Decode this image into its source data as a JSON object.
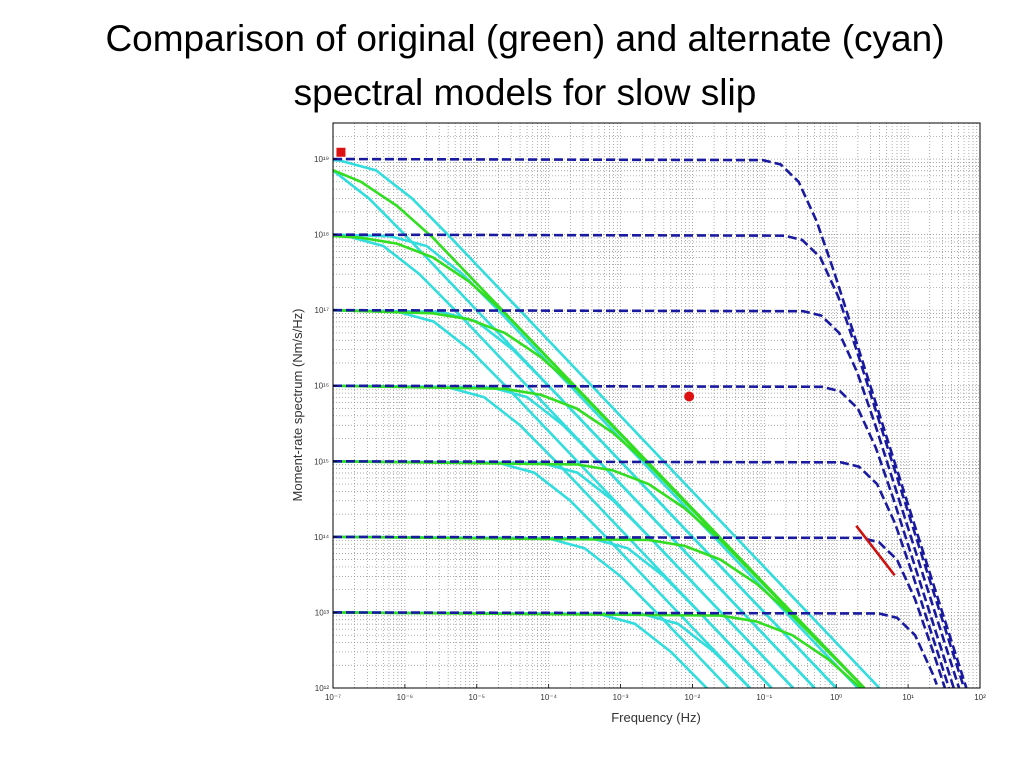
{
  "chart_data": {
    "type": "line",
    "title": "Comparison of original (green) and alternate (cyan) spectral models for slow slip",
    "x_label": "Frequency (Hz)",
    "y_label": "Moment-rate spectrum (Nm/s/Hz)",
    "xlog": true,
    "ylog": true,
    "grid": true,
    "minor_grid": true,
    "xlim": [
      1e-07,
      100
    ],
    "ylim": [
      1000000000000.0,
      3e+19
    ],
    "xticks": [
      {
        "value": 1e-07,
        "label": "10⁻⁷"
      },
      {
        "value": 1e-06,
        "label": "10⁻⁶"
      },
      {
        "value": 1e-05,
        "label": "10⁻⁵"
      },
      {
        "value": 0.0001,
        "label": "10⁻⁴"
      },
      {
        "value": 0.001,
        "label": "10⁻³"
      },
      {
        "value": 0.01,
        "label": "10⁻²"
      },
      {
        "value": 0.1,
        "label": "10⁻¹"
      },
      {
        "value": 1,
        "label": "10⁰"
      },
      {
        "value": 10,
        "label": "10¹"
      },
      {
        "value": 100,
        "label": "10²"
      }
    ],
    "yticks": [
      {
        "value": 1000000000000.0,
        "label": "10¹²"
      },
      {
        "value": 10000000000000.0,
        "label": "10¹³"
      },
      {
        "value": 100000000000000.0,
        "label": "10¹⁴"
      },
      {
        "value": 1000000000000000.0,
        "label": "10¹⁵"
      },
      {
        "value": 1e+16,
        "label": "10¹⁶"
      },
      {
        "value": 1e+17,
        "label": "10¹⁷"
      },
      {
        "value": 1e+18,
        "label": "10¹⁸"
      },
      {
        "value": 1e+19,
        "label": "10¹⁹"
      }
    ],
    "series": [
      {
        "color": "#33dddd",
        "x": [
          1e-07,
          3.162e-07,
          1e-06,
          1
        ],
        "values": [
          7.07e+18,
          3.01e+18,
          9.95e+17,
          1000000000000.0
        ]
      },
      {
        "color": "#33dddd",
        "x": [
          1e-07,
          1.585e-07,
          5.012e-07,
          1.585e-06,
          5.012e-06,
          0.5012
        ],
        "values": [
          9.81e+17,
          9.53e+17,
          7.07e+17,
          3.01e+17,
          9.95e+16,
          1000000000000.0
        ]
      },
      {
        "color": "#33dddd",
        "x": [
          1e-07,
          7.943e-07,
          2.512e-06,
          7.943e-06,
          2.512e-05,
          0.2512
        ],
        "values": [
          1e+17,
          9.53e+16,
          7.07e+16,
          3.01e+16,
          9950000000000000.0,
          1000000000000.0
        ]
      },
      {
        "color": "#33dddd",
        "x": [
          1e-07,
          3.981e-06,
          1.259e-05,
          3.981e-05,
          0.0001259,
          0.1259
        ],
        "values": [
          1e+16,
          9530000000000000.0,
          7070000000000000.0,
          3010000000000000.0,
          995000000000000.0,
          1000000000000.0
        ]
      },
      {
        "color": "#33dddd",
        "x": [
          1e-07,
          1.995e-05,
          6.31e-05,
          0.0001995,
          0.000631,
          0.0631
        ],
        "values": [
          1000000000000000.0,
          953000000000000.0,
          707000000000000.0,
          301000000000000.0,
          99500000000000.0,
          1000000000000.0
        ]
      },
      {
        "color": "#33dddd",
        "x": [
          1e-07,
          0.0001,
          0.0003162,
          0.001,
          0.003162,
          0.03162
        ],
        "values": [
          100000000000000.0,
          95300000000000.0,
          70700000000000.0,
          30100000000000.0,
          9950000000000.0,
          1000000000000.0
        ]
      },
      {
        "color": "#33dddd",
        "x": [
          1e-07,
          0.0005012,
          0.001585,
          0.005012,
          0.01585
        ],
        "values": [
          10000000000000.0,
          9530000000000.0,
          7070000000000.0,
          3010000000000.0,
          995000000000.0
        ]
      },
      {
        "color": "#33dddd",
        "x": [
          1e-07,
          1.259e-07,
          3.981e-07,
          1.259e-06,
          3.981e-06,
          3.981
        ],
        "values": [
          9.7e+18,
          9.53e+18,
          7.07e+18,
          3.01e+18,
          9.95e+17,
          1000000000000.0
        ]
      },
      {
        "color": "#33dddd",
        "x": [
          1e-07,
          6.31e-07,
          1.995e-06,
          6.31e-06,
          1.995e-05,
          1.995
        ],
        "values": [
          1e+18,
          9.53e+17,
          7.07e+17,
          3.01e+17,
          9.95e+16,
          1000000000000.0
        ]
      },
      {
        "color": "#33dddd",
        "x": [
          1e-07,
          3.162e-06,
          1e-05,
          3.162e-05,
          0.0001,
          1
        ],
        "values": [
          1e+17,
          9.53e+16,
          7.07e+16,
          3.01e+16,
          9950000000000000.0,
          1000000000000.0
        ]
      },
      {
        "color": "#33dddd",
        "x": [
          1e-07,
          1.585e-05,
          5.012e-05,
          0.0001585,
          0.0005012,
          0.5012
        ],
        "values": [
          1e+16,
          9530000000000000.0,
          7070000000000000.0,
          3010000000000000.0,
          995000000000000.0,
          1000000000000.0
        ]
      },
      {
        "color": "#33dddd",
        "x": [
          1e-07,
          7.943e-05,
          0.0002512,
          0.0007943,
          0.002512,
          0.2512
        ],
        "values": [
          1000000000000000.0,
          953000000000000.0,
          707000000000000.0,
          301000000000000.0,
          99500000000000.0,
          1000000000000.0
        ]
      },
      {
        "color": "#33dddd",
        "x": [
          1e-07,
          0.0003981,
          0.001259,
          0.003981,
          0.01259,
          0.1259
        ],
        "values": [
          100000000000000.0,
          95300000000000.0,
          70700000000000.0,
          30100000000000.0,
          9950000000000.0,
          1000000000000.0
        ]
      },
      {
        "color": "#33dddd",
        "x": [
          1e-07,
          0.001995,
          0.00631,
          0.01995,
          0.0631
        ],
        "values": [
          10000000000000.0,
          9530000000000.0,
          7070000000000.0,
          3010000000000.0,
          995000000000.0
        ]
      },
      {
        "color": "#33dd22",
        "x": [
          1e-07,
          2.45e-07,
          7.75e-07,
          2.45e-06,
          2.45
        ],
        "values": [
          7.11e+18,
          5e+18,
          2.4e+18,
          9.1e+17,
          1000000000000.0
        ]
      },
      {
        "color": "#33dd22",
        "x": [
          1e-07,
          2.45e-07,
          7.75e-07,
          2.45e-06,
          7.75e-06,
          2.45e-05,
          2.45
        ],
        "values": [
          9.61e+17,
          9.1e+17,
          7.6e+17,
          5e+17,
          2.4e+17,
          9.1e+16,
          1000000000000.0
        ]
      },
      {
        "color": "#33dd22",
        "x": [
          1e-07,
          2.45e-06,
          7.75e-06,
          2.45e-05,
          7.75e-05,
          0.000245,
          2.45
        ],
        "values": [
          1e+17,
          9.1e+16,
          7.6e+16,
          5e+16,
          2.4e+16,
          9100000000000000.0,
          1000000000000.0
        ]
      },
      {
        "color": "#33dd22",
        "x": [
          1e-07,
          2.45e-05,
          7.75e-05,
          0.000245,
          0.000775,
          0.00245,
          2.45
        ],
        "values": [
          1e+16,
          9100000000000000.0,
          7600000000000000.0,
          5000000000000000.0,
          2400000000000000.0,
          910000000000000.0,
          1000000000000.0
        ]
      },
      {
        "color": "#33dd22",
        "x": [
          1e-07,
          0.000245,
          0.000775,
          0.00245,
          0.00775,
          0.0245,
          2.45
        ],
        "values": [
          1000000000000000.0,
          910000000000000.0,
          760000000000000.0,
          500000000000000.0,
          240000000000000.0,
          91000000000000.0,
          1000000000000.0
        ]
      },
      {
        "color": "#33dd22",
        "x": [
          1e-07,
          0.00245,
          0.00775,
          0.0245,
          0.0775,
          0.245,
          2.45
        ],
        "values": [
          100000000000000.0,
          91000000000000.0,
          76000000000000.0,
          50000000000000.0,
          24000000000000.0,
          9100000000000.0,
          1000000000000.0
        ]
      },
      {
        "color": "#33dd22",
        "x": [
          1e-07,
          0.0245,
          0.0775,
          0.245,
          0.775,
          2.45
        ],
        "values": [
          10000000000000.0,
          9100000000000.0,
          7600000000000.0,
          5000000000000.0,
          2400000000000.0,
          910000000000.0
        ]
      },
      {
        "color": "#1a1aa0",
        "line_style": "dashed",
        "x": [
          1e-07,
          0.0949,
          0.169,
          0.3,
          0.533,
          0.949,
          64.6
        ],
        "values": [
          1e+19,
          9.69e+18,
          8.49e+18,
          5e+18,
          1.51e+18,
          3.07e+17,
          1000000000000.0
        ]
      },
      {
        "color": "#1a1aa0",
        "line_style": "dashed",
        "x": [
          1e-07,
          0.19,
          0.337,
          0.6,
          1.067,
          1.897,
          60
        ],
        "values": [
          1e+18,
          9.69e+17,
          8.49e+17,
          5e+17,
          1.51e+17,
          3.07e+16,
          1000000000000.0
        ]
      },
      {
        "color": "#1a1aa0",
        "line_style": "dashed",
        "x": [
          1e-07,
          0.348,
          0.618,
          1.1,
          1.956,
          3.478,
          51.1
        ],
        "values": [
          1e+17,
          9.69e+16,
          8.49e+16,
          5e+16,
          1.51e+16,
          3070000000000000.0,
          1000000000000.0
        ]
      },
      {
        "color": "#1a1aa0",
        "line_style": "dashed",
        "x": [
          1e-07,
          0.632,
          1.124,
          2,
          3.556,
          6.325,
          43.1
        ],
        "values": [
          1e+16,
          9690000000000000.0,
          8490000000000000.0,
          5000000000000000.0,
          1510000000000000.0,
          307000000000000.0,
          1000000000000.0
        ]
      },
      {
        "color": "#1a1aa0",
        "line_style": "dashed",
        "x": [
          1e-07,
          1.17,
          2.079,
          3.7,
          6.58,
          11.7,
          37
        ],
        "values": [
          1000000000000000.0,
          969000000000000.0,
          849000000000000.0,
          500000000000000.0,
          151000000000000.0,
          30700000000000.0,
          1000000000000.0
        ]
      },
      {
        "color": "#1a1aa0",
        "line_style": "dashed",
        "x": [
          1e-07,
          2.214,
          3.934,
          7,
          12.45,
          22.14,
          32.5
        ],
        "values": [
          100000000000000.0,
          96900000000000.0,
          84900000000000.0,
          50000000000000.0,
          15100000000000.0,
          3070000000000.0,
          1000000000000.0
        ]
      },
      {
        "color": "#1a1aa0",
        "line_style": "dashed",
        "x": [
          1e-07,
          3.953,
          7.025,
          12.5,
          22.2,
          25
        ],
        "values": [
          10000000000000.0,
          9690000000000.0,
          8490000000000.0,
          5000000000000.0,
          1510000000000.0,
          1110000000000.0
        ]
      },
      {
        "color": "#cc1111",
        "x": [
          1.9,
          6.5
        ],
        "values": [
          140000000000000.0,
          31000000000000.0
        ]
      },
      {
        "color": "#dd1111",
        "marker": "square",
        "x": [
          1.29e-07
        ],
        "values": [
          1.23e+19
        ]
      },
      {
        "color": "#dd1111",
        "marker": "circle",
        "x": [
          0.009
        ],
        "values": [
          7200000000000000.0
        ]
      }
    ]
  }
}
